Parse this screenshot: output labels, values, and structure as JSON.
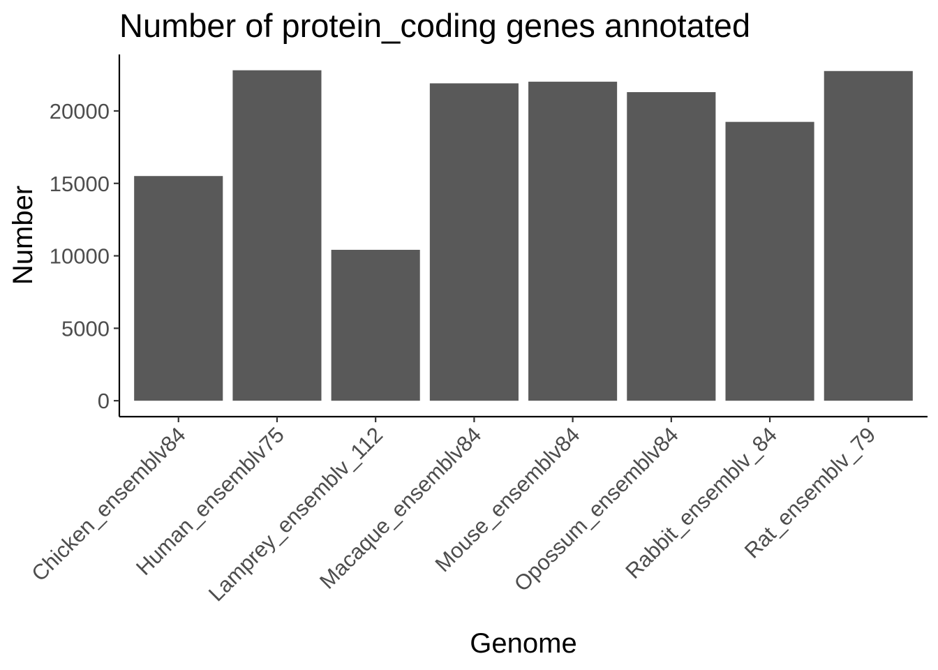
{
  "chart_data": {
    "type": "bar",
    "title": "Number of protein_coding genes annotated",
    "xlabel": "Genome",
    "ylabel": "Number",
    "categories": [
      "Chicken_ensemblv84",
      "Human_ensemblv75",
      "Lamprey_ensemblv_112",
      "Macaque_ensemblv84",
      "Mouse_ensemblv84",
      "Opossum_ensemblv84",
      "Rabbit_ensemblv_84",
      "Rat_ensemblv_79"
    ],
    "values": [
      15508,
      22807,
      10415,
      21905,
      22018,
      21298,
      19245,
      22755
    ],
    "yticks": [
      0,
      5000,
      10000,
      15000,
      20000
    ],
    "ylim": [
      -1100,
      23900
    ],
    "grid": false,
    "legend": "none",
    "bar_color": "#595959"
  }
}
